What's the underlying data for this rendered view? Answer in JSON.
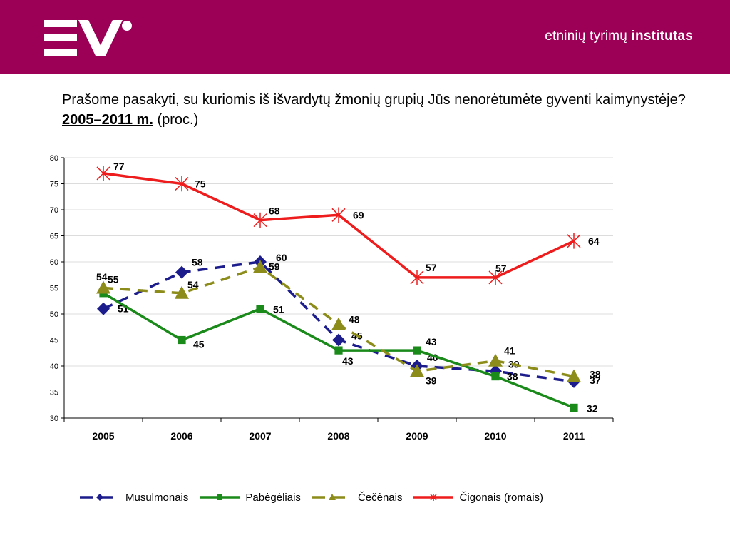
{
  "header": {
    "brand_regular": "etninių tyrimų ",
    "brand_bold": "institutas",
    "logo_icon": "ei-logo"
  },
  "question": {
    "text": "Prašome pasakyti, su kuriomis iš išvardytų žmonių grupių Jūs nenorėtumėte gyventi kaimynystėje? ",
    "years": "2005–2011 m.",
    "suffix": " (proc.)"
  },
  "colors": {
    "header_bg": "#9c0056",
    "musulmonai": "#1c1c8c",
    "pabegeliai": "#1a8a1a",
    "cecenai": "#8c8c1a",
    "cigonai": "#ee1c1c"
  },
  "chart_data": {
    "type": "line",
    "categories": [
      "2005",
      "2006",
      "2007",
      "2008",
      "2009",
      "2010",
      "2011"
    ],
    "ylim": [
      30,
      80
    ],
    "yticks": [
      30,
      35,
      40,
      45,
      50,
      55,
      60,
      65,
      70,
      75,
      80
    ],
    "grid": true,
    "legend_position": "bottom",
    "series": [
      {
        "name": "Musulmonais",
        "values": [
          51,
          58,
          60,
          45,
          40,
          39,
          37
        ],
        "line": "dashed",
        "marker": "diamond"
      },
      {
        "name": "Pabėgėliais",
        "values": [
          54,
          45,
          51,
          43,
          43,
          38,
          32
        ],
        "line": "solid",
        "marker": "square"
      },
      {
        "name": "Čečėnais",
        "values": [
          55,
          54,
          59,
          48,
          39,
          41,
          38
        ],
        "line": "dashed",
        "marker": "triangle"
      },
      {
        "name": "Čigonais (romais)",
        "values": [
          77,
          75,
          68,
          69,
          57,
          57,
          64
        ],
        "line": "solid",
        "marker": "star"
      }
    ]
  }
}
